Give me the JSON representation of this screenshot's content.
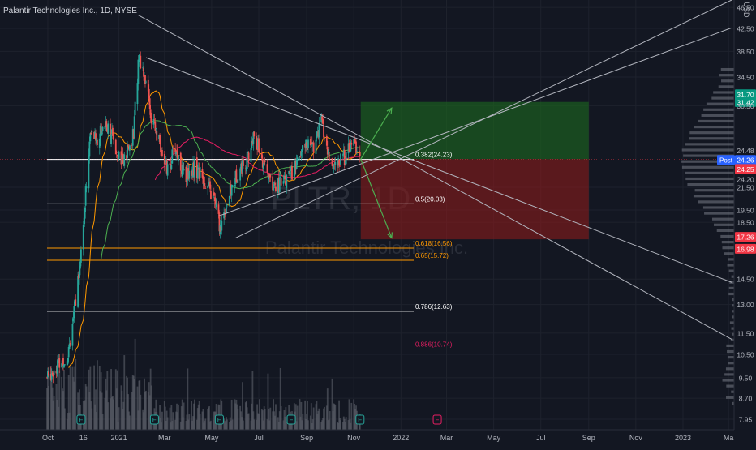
{
  "header": {
    "title": "Palantir Technologies Inc., 1D, NYSE"
  },
  "watermark": {
    "ticker": "PLTR, 1D",
    "name": "Palantir Technologies Inc."
  },
  "price_axis": {
    "currency": "USD",
    "ticks": [
      "46.50",
      "42.50",
      "38.50",
      "34.50",
      "31.70",
      "31.42",
      "30.50",
      "24.48",
      "24.26",
      "24.25",
      "24.20",
      "21.50",
      "19.50",
      "18.50",
      "17.26",
      "16.98",
      "14.50",
      "13.00",
      "11.50",
      "10.50",
      "9.50",
      "8.70",
      "7.95"
    ]
  },
  "time_axis": {
    "ticks": [
      "Oct",
      "16",
      "2021",
      "Mar",
      "May",
      "Jul",
      "Sep",
      "Nov",
      "2022",
      "Mar",
      "May",
      "Jul",
      "Sep",
      "Nov",
      "2023",
      "Ma"
    ]
  },
  "price_badges": [
    {
      "label": "31.70",
      "color": "#089981"
    },
    {
      "label": "31.42",
      "color": "#089981"
    },
    {
      "label": "24.48",
      "color": "#131722"
    },
    {
      "label": "Post",
      "color": "#2962ff"
    },
    {
      "label": "24.26",
      "color": "#2962ff"
    },
    {
      "label": "24.25",
      "color": "#f23645"
    },
    {
      "label": "24.20",
      "color": "#131722"
    },
    {
      "label": "17.26",
      "color": "#f23645"
    },
    {
      "label": "16.98",
      "color": "#f23645"
    }
  ],
  "colors": {
    "background": "#131722",
    "up": "#26a69a",
    "down": "#ef5350",
    "fib_white": "#ffffff",
    "fib_orange": "#ff9800",
    "fib_pink": "#e91e63",
    "long_profit_zone": "#1b5e20",
    "long_risk_zone": "#8b1a1a",
    "arrow": "#4caf50",
    "trendline": "#b2b5be",
    "ma_short": "#ff9800",
    "ma_mid": "#4caf50",
    "ma_long": "#e91e63"
  },
  "fib_levels": [
    {
      "label": "0.382(24.23)",
      "price": 24.23,
      "color": "#ffffff"
    },
    {
      "label": "0.5(20.03)",
      "price": 20.03,
      "color": "#ffffff"
    },
    {
      "label": "0.618(16.56)",
      "price": 16.56,
      "color": "#ff9800"
    },
    {
      "label": "0.65(15.72)",
      "price": 15.72,
      "color": "#ff9800"
    },
    {
      "label": "0.786(12.63)",
      "price": 12.63,
      "color": "#ffffff"
    },
    {
      "label": "0.886(10.74)",
      "price": 10.74,
      "color": "#e91e63"
    }
  ],
  "earnings_markers": [
    "E",
    "E",
    "E",
    "E",
    "E",
    "E"
  ],
  "chart_data": {
    "type": "candlestick",
    "title": "Palantir Technologies Inc., 1D, NYSE",
    "ylabel": "USD",
    "y_scale": "log",
    "ylim": [
      7.6,
      48
    ],
    "x_ticks": [
      "Oct",
      "16",
      "2021",
      "Mar",
      "May",
      "Jul",
      "Sep",
      "Nov",
      "2022",
      "Mar",
      "May",
      "Jul",
      "Sep",
      "Nov",
      "2023",
      "Ma"
    ],
    "price_path": [
      {
        "date": "2020-09-30",
        "price": 9.5
      },
      {
        "date": "2020-10-12",
        "price": 10.0
      },
      {
        "date": "2020-10-26",
        "price": 10.4
      },
      {
        "date": "2020-11-06",
        "price": 13.0
      },
      {
        "date": "2020-11-16",
        "price": 18.0
      },
      {
        "date": "2020-11-25",
        "price": 27.0
      },
      {
        "date": "2020-12-04",
        "price": 26.5
      },
      {
        "date": "2020-12-15",
        "price": 28.5
      },
      {
        "date": "2020-12-28",
        "price": 25.5
      },
      {
        "date": "2021-01-08",
        "price": 24.0
      },
      {
        "date": "2021-01-20",
        "price": 27.0
      },
      {
        "date": "2021-01-27",
        "price": 38.0
      },
      {
        "date": "2021-02-05",
        "price": 34.0
      },
      {
        "date": "2021-02-12",
        "price": 29.0
      },
      {
        "date": "2021-02-24",
        "price": 25.5
      },
      {
        "date": "2021-03-05",
        "price": 23.0
      },
      {
        "date": "2021-03-15",
        "price": 25.5
      },
      {
        "date": "2021-03-26",
        "price": 22.5
      },
      {
        "date": "2021-04-09",
        "price": 23.5
      },
      {
        "date": "2021-04-23",
        "price": 22.0
      },
      {
        "date": "2021-05-06",
        "price": 20.0
      },
      {
        "date": "2021-05-12",
        "price": 18.0
      },
      {
        "date": "2021-05-20",
        "price": 20.0
      },
      {
        "date": "2021-06-04",
        "price": 23.0
      },
      {
        "date": "2021-06-18",
        "price": 24.5
      },
      {
        "date": "2021-06-25",
        "price": 27.0
      },
      {
        "date": "2021-07-08",
        "price": 23.5
      },
      {
        "date": "2021-07-21",
        "price": 21.5
      },
      {
        "date": "2021-08-04",
        "price": 22.0
      },
      {
        "date": "2021-08-18",
        "price": 23.5
      },
      {
        "date": "2021-09-01",
        "price": 26.0
      },
      {
        "date": "2021-09-10",
        "price": 25.5
      },
      {
        "date": "2021-09-20",
        "price": 28.5
      },
      {
        "date": "2021-09-29",
        "price": 24.5
      },
      {
        "date": "2021-10-08",
        "price": 23.5
      },
      {
        "date": "2021-10-20",
        "price": 24.5
      },
      {
        "date": "2021-11-01",
        "price": 26.0
      },
      {
        "date": "2021-11-09",
        "price": 24.5
      }
    ],
    "volume_profile": "Visible-range volume profile on right edge, peak near 24.26"
  }
}
